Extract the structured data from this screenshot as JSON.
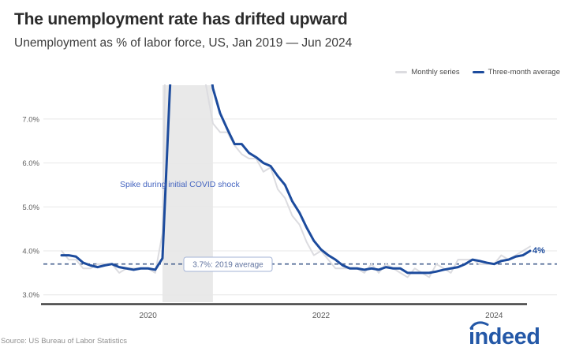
{
  "chart_data": {
    "type": "line",
    "title": "The unemployment rate has drifted upward",
    "subtitle": "Unemployment as % of labor force, US, Jan 2019 — Jun 2024",
    "x_unit": "month",
    "x_range": [
      "Jan 2019",
      "Jun 2024"
    ],
    "ylim": [
      2.8,
      7.7
    ],
    "grid": true,
    "legend_position": "top-right",
    "y_ticks": [
      {
        "label": "7.0%",
        "value": 7.0
      },
      {
        "label": "6.0%",
        "value": 6.0
      },
      {
        "label": "5.0%",
        "value": 5.0
      },
      {
        "label": "4.0%",
        "value": 4.0
      },
      {
        "label": "3.0%",
        "value": 3.0
      }
    ],
    "x_ticks": [
      {
        "label": "2020",
        "month_index": 12
      },
      {
        "label": "2022",
        "month_index": 36
      },
      {
        "label": "2024",
        "month_index": 60
      }
    ],
    "series": [
      {
        "name": "Monthly series",
        "color": "#dcdce0",
        "values": [
          4.0,
          3.8,
          3.8,
          3.6,
          3.6,
          3.7,
          3.7,
          3.7,
          3.5,
          3.6,
          3.6,
          3.6,
          3.6,
          3.5,
          4.4,
          14.8,
          13.2,
          11.0,
          10.2,
          8.4,
          7.8,
          6.9,
          6.7,
          6.7,
          6.4,
          6.2,
          6.1,
          6.1,
          5.8,
          5.9,
          5.4,
          5.2,
          4.8,
          4.6,
          4.2,
          3.9,
          4.0,
          3.8,
          3.6,
          3.6,
          3.6,
          3.6,
          3.5,
          3.7,
          3.5,
          3.7,
          3.6,
          3.5,
          3.4,
          3.6,
          3.5,
          3.4,
          3.7,
          3.6,
          3.5,
          3.8,
          3.8,
          3.8,
          3.7,
          3.7,
          3.7,
          3.9,
          3.8,
          3.9,
          4.0,
          4.1
        ]
      },
      {
        "name": "Three-month average",
        "color": "#1c4b9d",
        "values": [
          3.9,
          3.9,
          3.87,
          3.73,
          3.67,
          3.63,
          3.67,
          3.7,
          3.63,
          3.6,
          3.57,
          3.6,
          3.6,
          3.57,
          3.83,
          7.57,
          10.8,
          13.0,
          11.47,
          9.87,
          8.8,
          7.7,
          7.13,
          6.77,
          6.43,
          6.43,
          6.23,
          6.13,
          6.0,
          5.93,
          5.7,
          5.5,
          5.13,
          4.87,
          4.53,
          4.23,
          4.03,
          3.9,
          3.8,
          3.67,
          3.6,
          3.6,
          3.57,
          3.6,
          3.57,
          3.63,
          3.6,
          3.6,
          3.5,
          3.5,
          3.5,
          3.5,
          3.53,
          3.57,
          3.6,
          3.63,
          3.7,
          3.8,
          3.77,
          3.73,
          3.7,
          3.77,
          3.8,
          3.87,
          3.9,
          4.0
        ]
      }
    ],
    "reference_line": {
      "value": 3.7,
      "label": "3.7%: 2019 average"
    },
    "covid_band": {
      "start_month_index": 14,
      "end_month_index": 21,
      "note": "Spike during initial COVID shock"
    },
    "end_label": {
      "text": "4%",
      "value": 4.0
    }
  },
  "footer": {
    "source": "Source: US Bureau of Labor Statistics",
    "logo_text": "indeed",
    "logo_color": "#2458a7"
  }
}
